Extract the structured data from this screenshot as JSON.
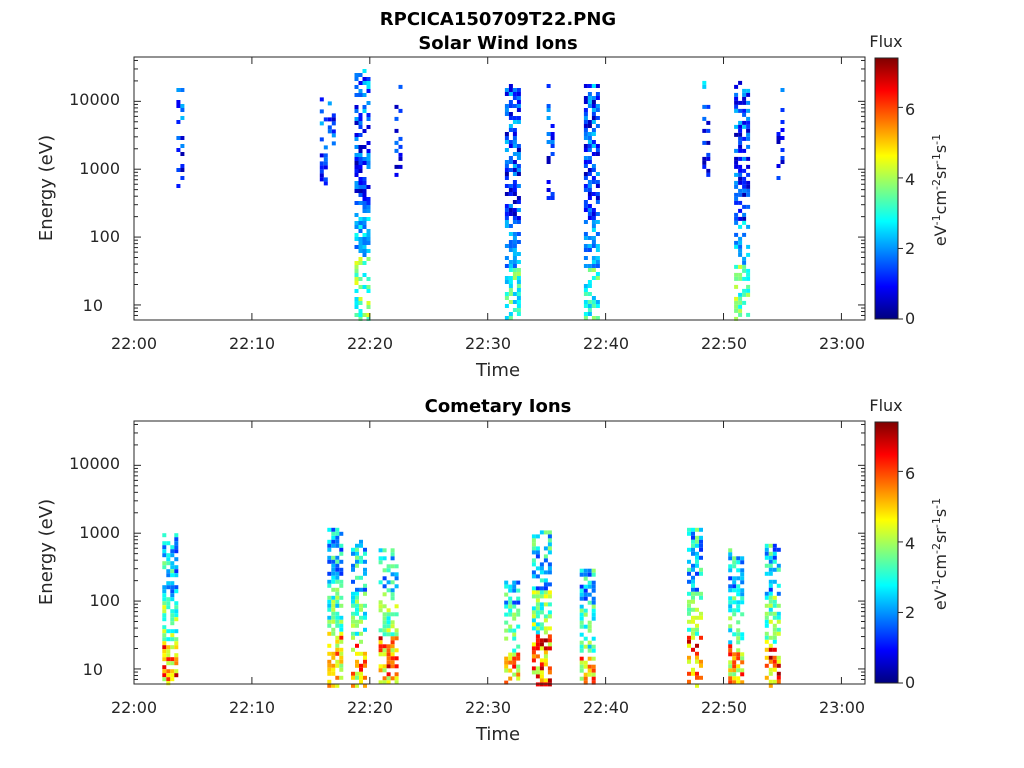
{
  "figure_title": "RPCICA150709T22.PNG",
  "colormap": [
    "#00007f",
    "#0000ff",
    "#007fff",
    "#00ffff",
    "#7fff7f",
    "#ffff00",
    "#ff7f00",
    "#ff0000",
    "#7f0000"
  ],
  "chart_data": [
    {
      "type": "heatmap",
      "title": "Solar Wind Ions",
      "xlabel": "Time",
      "ylabel": "Energy (eV)",
      "x_range": [
        "22:00",
        "23:02"
      ],
      "x_ticks": [
        "22:00",
        "22:10",
        "22:20",
        "22:30",
        "22:40",
        "22:50",
        "23:00"
      ],
      "y_scale": "log",
      "y_range": [
        6,
        45000
      ],
      "y_ticks": [
        "10",
        "100",
        "1000",
        "10000"
      ],
      "colorbar": {
        "label": "Flux",
        "unit": "eV-1cm-2sr-1s-1",
        "range": [
          0,
          7.4
        ],
        "ticks": [
          "0",
          "2",
          "4",
          "6"
        ]
      },
      "bursts": [
        {
          "t": 22.065,
          "w": 0.01,
          "emin": 600,
          "emax": 18000,
          "core": 0,
          "peak": 2.2,
          "density": 0.3
        },
        {
          "t": 22.2717,
          "w": 0.018,
          "emin": 600,
          "emax": 15000,
          "core": 0,
          "peak": 2.0,
          "density": 0.3
        },
        {
          "t": 22.3217,
          "w": 0.02,
          "emin": 6,
          "emax": 30000,
          "core": 40,
          "peak": 4.5,
          "density": 0.55
        },
        {
          "t": 22.3733,
          "w": 0.01,
          "emin": 400,
          "emax": 20000,
          "core": 0,
          "peak": 2.0,
          "density": 0.25
        },
        {
          "t": 22.5333,
          "w": 0.018,
          "emin": 6,
          "emax": 18000,
          "core": 30,
          "peak": 4.0,
          "density": 0.55
        },
        {
          "t": 22.5883,
          "w": 0.01,
          "emin": 400,
          "emax": 18000,
          "core": 0,
          "peak": 2.0,
          "density": 0.25
        },
        {
          "t": 22.645,
          "w": 0.018,
          "emin": 6,
          "emax": 18000,
          "core": 30,
          "peak": 4.0,
          "density": 0.55
        },
        {
          "t": 22.8083,
          "w": 0.01,
          "emin": 600,
          "emax": 20000,
          "core": 0,
          "peak": 2.0,
          "density": 0.25
        },
        {
          "t": 22.8583,
          "w": 0.02,
          "emin": 6,
          "emax": 20000,
          "core": 30,
          "peak": 4.5,
          "density": 0.55
        },
        {
          "t": 22.9133,
          "w": 0.01,
          "emin": 600,
          "emax": 18000,
          "core": 0,
          "peak": 2.0,
          "density": 0.25
        }
      ]
    },
    {
      "type": "heatmap",
      "title": "Cometary Ions",
      "xlabel": "Time",
      "ylabel": "Energy (eV)",
      "x_range": [
        "22:00",
        "23:02"
      ],
      "x_ticks": [
        "22:00",
        "22:10",
        "22:20",
        "22:30",
        "22:40",
        "22:50",
        "23:00"
      ],
      "y_scale": "log",
      "y_range": [
        6,
        45000
      ],
      "y_ticks": [
        "10",
        "100",
        "1000",
        "10000"
      ],
      "colorbar": {
        "label": "Flux",
        "unit": "eV-1cm-2sr-1s-1",
        "range": [
          0,
          7.4
        ],
        "ticks": [
          "0",
          "2",
          "4",
          "6"
        ]
      },
      "bursts": [
        {
          "t": 22.05,
          "w": 0.02,
          "emin": 6,
          "emax": 1000,
          "core": 20,
          "peak": 7.0,
          "density": 0.6
        },
        {
          "t": 22.2833,
          "w": 0.02,
          "emin": 6,
          "emax": 1200,
          "core": 30,
          "peak": 6.5,
          "density": 0.6
        },
        {
          "t": 22.3167,
          "w": 0.02,
          "emin": 6,
          "emax": 800,
          "core": 25,
          "peak": 6.5,
          "density": 0.55
        },
        {
          "t": 22.3583,
          "w": 0.025,
          "emin": 6,
          "emax": 600,
          "core": 25,
          "peak": 7.0,
          "density": 0.6
        },
        {
          "t": 22.5333,
          "w": 0.02,
          "emin": 6,
          "emax": 200,
          "core": 15,
          "peak": 6.5,
          "density": 0.55
        },
        {
          "t": 22.575,
          "w": 0.025,
          "emin": 6,
          "emax": 1100,
          "core": 25,
          "peak": 7.2,
          "density": 0.6
        },
        {
          "t": 22.64,
          "w": 0.02,
          "emin": 6,
          "emax": 300,
          "core": 15,
          "peak": 6.5,
          "density": 0.55
        },
        {
          "t": 22.7917,
          "w": 0.02,
          "emin": 6,
          "emax": 1200,
          "core": 25,
          "peak": 7.0,
          "density": 0.6
        },
        {
          "t": 22.85,
          "w": 0.02,
          "emin": 6,
          "emax": 600,
          "core": 20,
          "peak": 6.5,
          "density": 0.55
        },
        {
          "t": 22.9017,
          "w": 0.02,
          "emin": 6,
          "emax": 800,
          "core": 20,
          "peak": 7.2,
          "density": 0.6
        }
      ]
    }
  ]
}
